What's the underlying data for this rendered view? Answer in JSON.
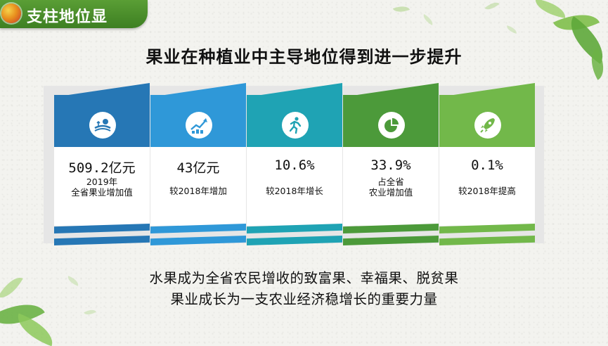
{
  "header": {
    "title": "支柱地位显"
  },
  "subtitle": "果业在种植业中主导地位得到进一步提升",
  "cards": [
    {
      "value": "509.2亿元",
      "desc_lines": [
        "2019年",
        "全省果业增加值"
      ],
      "icon": "harvest-icon",
      "color": "#2677b5"
    },
    {
      "value": "43亿元",
      "desc_lines": [
        "较2018年增加"
      ],
      "icon": "growth-chart-icon",
      "color": "#2f98d8"
    },
    {
      "value": "10.6%",
      "desc_lines": [
        "较2018年增长"
      ],
      "icon": "runner-icon",
      "color": "#1fa3b4"
    },
    {
      "value": "33.9%",
      "desc_lines": [
        "占全省",
        "农业增加值"
      ],
      "icon": "pie-chart-icon",
      "color": "#4c9a3a"
    },
    {
      "value": "0.1%",
      "desc_lines": [
        "较2018年提高"
      ],
      "icon": "rocket-icon",
      "color": "#72b84a"
    }
  ],
  "bottom": {
    "line1": "水果成为全省农民增收的致富果、幸福果、脱贫果",
    "line2": "果业成长为一支农业经济稳增长的重要力量"
  }
}
